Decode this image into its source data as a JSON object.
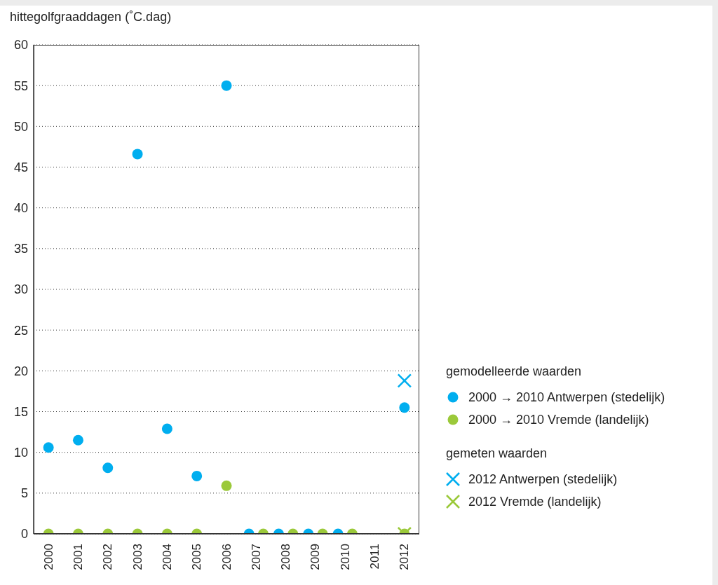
{
  "chart_data": {
    "type": "scatter",
    "ylabel": "hittegolfgraaddagen (˚C.dag)",
    "categories": [
      "2000",
      "2001",
      "2002",
      "2003",
      "2004",
      "2005",
      "2006",
      "2007",
      "2008",
      "2009",
      "2010",
      "2011",
      "2012"
    ],
    "series": [
      {
        "name": "2000 → 2010 Antwerpen (stedelijk)",
        "color": "#00aeef",
        "marker": "circle",
        "values": [
          10.6,
          11.5,
          8.1,
          46.6,
          12.9,
          7.1,
          55,
          0,
          0,
          0,
          0,
          null,
          15.5
        ]
      },
      {
        "name": "2000 → 2010 Vremde (landelijk)",
        "color": "#9bc93a",
        "marker": "circle",
        "values": [
          0,
          0,
          0,
          0,
          0,
          0,
          5.9,
          0,
          0,
          0,
          0,
          null,
          0
        ]
      },
      {
        "name": "2012 Antwerpen (stedelijk)",
        "color": "#00aeef",
        "marker": "cross",
        "values": [
          null,
          null,
          null,
          null,
          null,
          null,
          null,
          null,
          null,
          null,
          null,
          null,
          18.8
        ]
      },
      {
        "name": "2012 Vremde (landelijk)",
        "color": "#9bc93a",
        "marker": "cross",
        "values": [
          null,
          null,
          null,
          null,
          null,
          null,
          null,
          null,
          null,
          null,
          null,
          null,
          0
        ]
      }
    ],
    "annotations": [
      "gemodelleerde waarden",
      "gemeten waarden"
    ],
    "ylim": [
      0,
      60
    ],
    "yticks": [
      0,
      5,
      10,
      15,
      20,
      25,
      30,
      35,
      40,
      45,
      50,
      55,
      60
    ],
    "grid": "y",
    "legend": "right"
  }
}
